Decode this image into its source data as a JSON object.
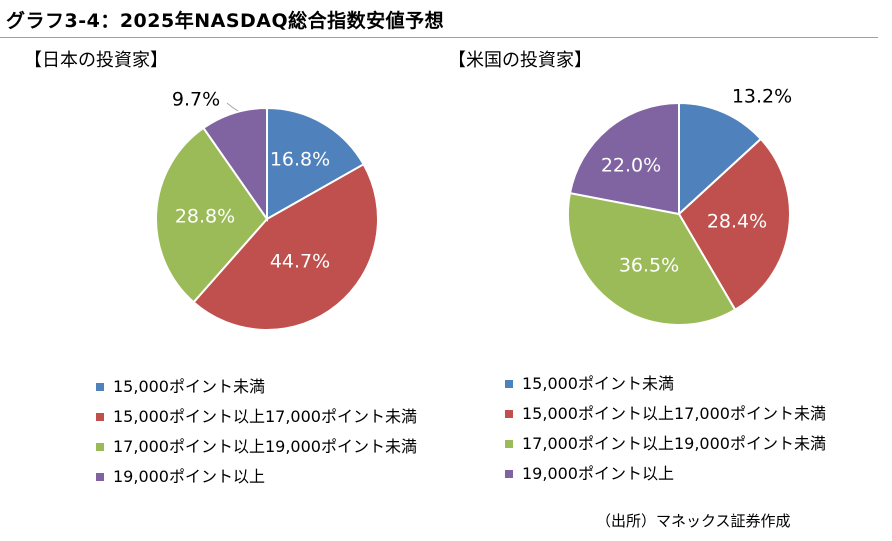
{
  "title": "グラフ3-4：2025年NASDAQ総合指数安値予想",
  "series_names": [
    "15,000ポイント未満",
    "15,000ポイント以上17,000ポイント未満",
    "17,000ポイント以上19,000ポイント未満",
    "19,000ポイント以上"
  ],
  "colors": [
    "#4f81bd",
    "#c0504d",
    "#9bbb59",
    "#8064a2"
  ],
  "source": "（出所）マネックス証券作成",
  "chart_data": [
    {
      "type": "pie",
      "title": "【日本の投資家】",
      "labels": [
        "15,000ポイント未満",
        "15,000ポイント以上17,000ポイント未満",
        "17,000ポイント以上19,000ポイント未満",
        "19,000ポイント以上"
      ],
      "values": [
        16.8,
        44.7,
        28.8,
        9.7
      ],
      "data_labels": [
        "16.8%",
        "44.7%",
        "28.8%",
        "9.7%"
      ],
      "start_angle_deg": 0,
      "direction": "clockwise",
      "legend_position": "bottom"
    },
    {
      "type": "pie",
      "title": "【米国の投資家】",
      "labels": [
        "15,000ポイント未満",
        "15,000ポイント以上17,000ポイント未満",
        "17,000ポイント以上19,000ポイント未満",
        "19,000ポイント以上"
      ],
      "values": [
        13.2,
        28.4,
        36.5,
        22.0
      ],
      "data_labels": [
        "13.2%",
        "28.4%",
        "36.5%",
        "22.0%"
      ],
      "start_angle_deg": 0,
      "direction": "clockwise",
      "legend_position": "bottom"
    }
  ]
}
